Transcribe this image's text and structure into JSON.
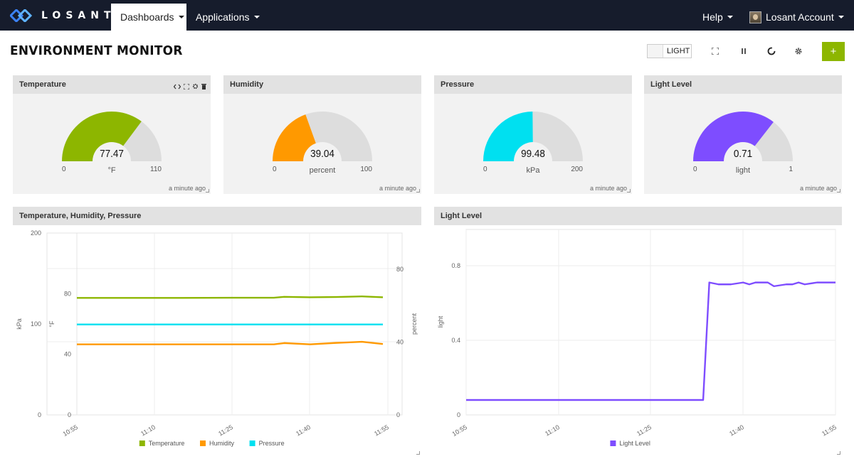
{
  "nav": {
    "brand": "LOSANT",
    "dashboards": "Dashboards",
    "applications": "Applications",
    "help": "Help",
    "account": "Losant Account"
  },
  "page": {
    "title": "ENVIRONMENT MONITOR",
    "theme_toggle": "LIGHT",
    "add_button": "+"
  },
  "icons": [
    "fullscreen-icon",
    "pause-icon",
    "refresh-icon",
    "gear-icon",
    "code-icon",
    "trash-icon"
  ],
  "gauges": [
    {
      "title": "Temperature",
      "value": "77.47",
      "unit": "°F",
      "min": "0",
      "max": "110",
      "fraction": 0.704,
      "color": "#8db600",
      "updated": "a minute ago"
    },
    {
      "title": "Humidity",
      "value": "39.04",
      "unit": "percent",
      "min": "0",
      "max": "100",
      "fraction": 0.39,
      "color": "#ff9900",
      "updated": "a minute ago"
    },
    {
      "title": "Pressure",
      "value": "99.48",
      "unit": "kPa",
      "min": "0",
      "max": "200",
      "fraction": 0.497,
      "color": "#00e0f0",
      "updated": "a minute ago"
    },
    {
      "title": "Light Level",
      "value": "0.71",
      "unit": "light",
      "min": "0",
      "max": "1",
      "fraction": 0.71,
      "color": "#7e4dff",
      "updated": "a minute ago"
    }
  ],
  "charts": {
    "left_title": "Temperature, Humidity, Pressure",
    "right_title": "Light Level"
  },
  "chart_data": [
    {
      "type": "line",
      "title": "Temperature, Humidity, Pressure",
      "x": [
        "10:55",
        "11:10",
        "11:25",
        "11:40",
        "11:55"
      ],
      "axes": {
        "kpa": {
          "label": "kPa",
          "ticks": [
            "200",
            "100",
            "0"
          ],
          "ylim": [
            0,
            200
          ]
        },
        "f": {
          "label": "°F",
          "ticks": [
            "80",
            "40",
            "0"
          ],
          "ylim": [
            0,
            120
          ]
        },
        "percent": {
          "label": "percent",
          "ticks": [
            "80",
            "40",
            "0"
          ],
          "ylim": [
            0,
            100
          ]
        }
      },
      "series": [
        {
          "name": "Temperature",
          "color": "#8db600",
          "axis": "f",
          "x": [
            0,
            10,
            20,
            30,
            38,
            40,
            45,
            50,
            55,
            60
          ],
          "values": [
            77.2,
            77.2,
            77.2,
            77.3,
            77.3,
            77.9,
            77.6,
            77.8,
            78.2,
            77.6
          ]
        },
        {
          "name": "Humidity",
          "color": "#ff9900",
          "axis": "percent",
          "x": [
            0,
            10,
            20,
            30,
            38,
            40,
            45,
            50,
            52,
            55,
            60
          ],
          "values": [
            38.8,
            38.8,
            38.8,
            38.8,
            38.8,
            39.5,
            38.8,
            39.6,
            39.8,
            40.2,
            39.0
          ]
        },
        {
          "name": "Pressure",
          "color": "#00e0f0",
          "axis": "kpa",
          "x": [
            0,
            60
          ],
          "values": [
            99.5,
            99.5
          ]
        }
      ],
      "grid": true,
      "legend": "bottom"
    },
    {
      "type": "line",
      "title": "Light Level",
      "x": [
        "10:55",
        "11:10",
        "11:25",
        "11:40",
        "11:55"
      ],
      "ylabel": "light",
      "yticks": [
        "0.8",
        "0.4",
        "0"
      ],
      "ylim": [
        0,
        0.8
      ],
      "series": [
        {
          "name": "Light Level",
          "color": "#7e4dff",
          "x": [
            0,
            38.5,
            39.5,
            41,
            43,
            45,
            46,
            47,
            48,
            49,
            50,
            52,
            53,
            54,
            55,
            57,
            60
          ],
          "values": [
            0.08,
            0.08,
            0.71,
            0.7,
            0.7,
            0.71,
            0.7,
            0.71,
            0.71,
            0.71,
            0.69,
            0.7,
            0.7,
            0.71,
            0.7,
            0.71,
            0.71
          ]
        }
      ],
      "grid": true,
      "legend": "bottom"
    }
  ]
}
